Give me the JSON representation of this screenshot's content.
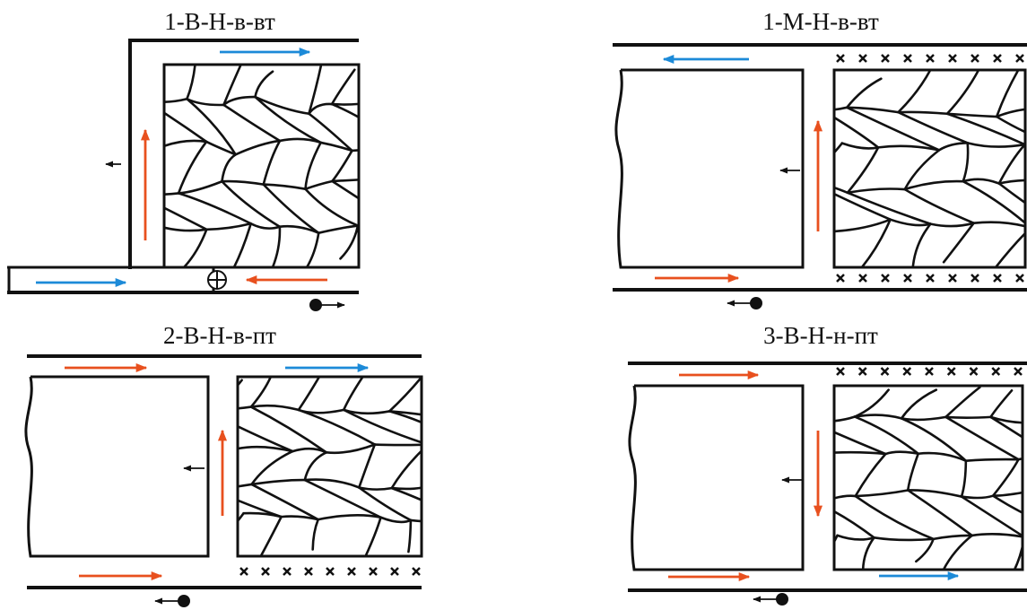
{
  "panels": [
    {
      "title": "1-В-Н-в-вт"
    },
    {
      "title": "1-М-Н-в-вт"
    },
    {
      "title": "2-В-Н-в-пт"
    },
    {
      "title": "3-В-Н-н-пт"
    }
  ]
}
